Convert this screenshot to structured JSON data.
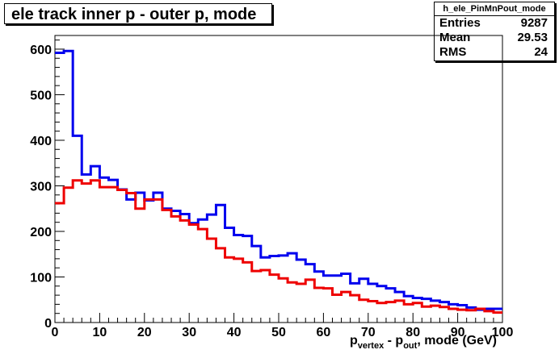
{
  "title": "ele track inner p - outer p, mode",
  "stats": {
    "name": "h_ele_PinMnPout_mode",
    "rows": [
      {
        "label": "Entries",
        "value": "9287"
      },
      {
        "label": "Mean",
        "value": "29.53"
      },
      {
        "label": "RMS",
        "value": "24"
      }
    ]
  },
  "xlabel": {
    "p1": "p",
    "sub1": "vertex",
    "p2": " - p",
    "sub2": "out",
    "p3": ", mode (GeV)"
  },
  "colors": {
    "blue_series": "#0000ee",
    "red_series": "#ee0000",
    "frame": "#000000"
  },
  "chart_data": {
    "type": "line",
    "style": "step histogram",
    "xlim": [
      0,
      100
    ],
    "ylim": [
      0,
      630
    ],
    "bin_width": 2,
    "x_ticks": [
      0,
      10,
      20,
      30,
      40,
      50,
      60,
      70,
      80,
      90,
      100
    ],
    "y_ticks": [
      0,
      100,
      200,
      300,
      400,
      500,
      600
    ],
    "grid": false,
    "series": [
      {
        "color": "#0000ee",
        "values": [
          592,
          596,
          410,
          325,
          343,
          318,
          313,
          292,
          270,
          285,
          268,
          285,
          250,
          245,
          238,
          218,
          226,
          237,
          258,
          208,
          192,
          190,
          168,
          143,
          146,
          147,
          152,
          138,
          128,
          112,
          103,
          103,
          107,
          86,
          96,
          85,
          80,
          75,
          67,
          58,
          54,
          52,
          48,
          45,
          40,
          38,
          33,
          28,
          30,
          30
        ]
      },
      {
        "color": "#ee0000",
        "values": [
          262,
          296,
          312,
          305,
          312,
          297,
          297,
          291,
          284,
          250,
          270,
          270,
          247,
          233,
          224,
          215,
          205,
          184,
          163,
          143,
          140,
          132,
          113,
          115,
          105,
          97,
          88,
          85,
          94,
          76,
          75,
          61,
          67,
          60,
          50,
          47,
          43,
          45,
          48,
          40,
          43,
          35,
          37,
          34,
          30,
          28,
          27,
          30,
          25,
          22
        ]
      }
    ]
  }
}
